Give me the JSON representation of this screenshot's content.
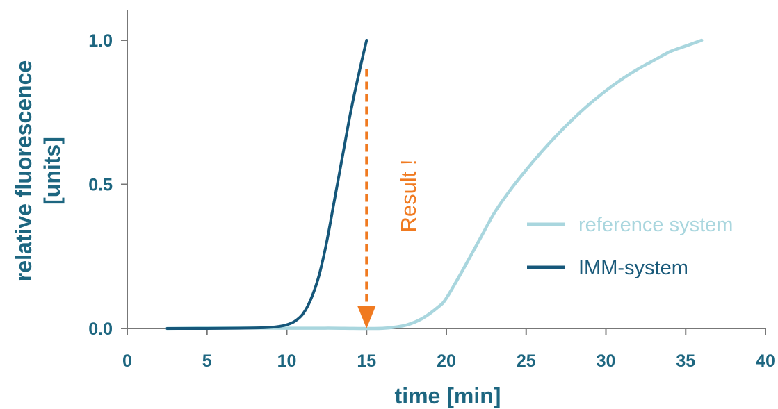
{
  "chart_data": {
    "type": "line",
    "xlabel": "time [min]",
    "ylabel_line1": "relative fluorescence",
    "ylabel_line2": "[units]",
    "xlim": [
      0,
      40
    ],
    "ylim": [
      0,
      1.0
    ],
    "x_ticks": [
      "0",
      "5",
      "10",
      "15",
      "20",
      "25",
      "30",
      "35",
      "40"
    ],
    "y_ticks": [
      "0.0",
      "0.5",
      "1.0"
    ],
    "grid": false,
    "legend_position": "right",
    "series": [
      {
        "name": "reference system",
        "color": "#a9d6de",
        "x": [
          2.5,
          6,
          8,
          10,
          12,
          13,
          15.5,
          16.5,
          17.5,
          18.5,
          19.5,
          20,
          21,
          22,
          23,
          24,
          25,
          26,
          27,
          28,
          29,
          30,
          31,
          32,
          33,
          34,
          35,
          36
        ],
        "y": [
          0,
          0.003,
          0.002,
          0.001,
          0.001,
          0.001,
          0,
          0.003,
          0.012,
          0.035,
          0.075,
          0.105,
          0.2,
          0.3,
          0.4,
          0.48,
          0.55,
          0.615,
          0.675,
          0.73,
          0.78,
          0.825,
          0.865,
          0.9,
          0.93,
          0.96,
          0.98,
          1.0
        ]
      },
      {
        "name": "IMM-system",
        "color": "#16577a",
        "x": [
          2.5,
          5,
          7,
          8,
          9,
          9.5,
          10,
          10.5,
          11,
          11.5,
          12,
          12.5,
          13,
          13.5,
          14,
          14.5,
          15
        ],
        "y": [
          0,
          0,
          0.001,
          0.002,
          0.004,
          0.007,
          0.013,
          0.025,
          0.05,
          0.1,
          0.18,
          0.3,
          0.45,
          0.6,
          0.75,
          0.88,
          1.0
        ]
      }
    ],
    "annotation": {
      "text": "Result !",
      "color": "#f07a20",
      "x": 15,
      "y_from": 0.9,
      "y_to": 0.0
    }
  }
}
